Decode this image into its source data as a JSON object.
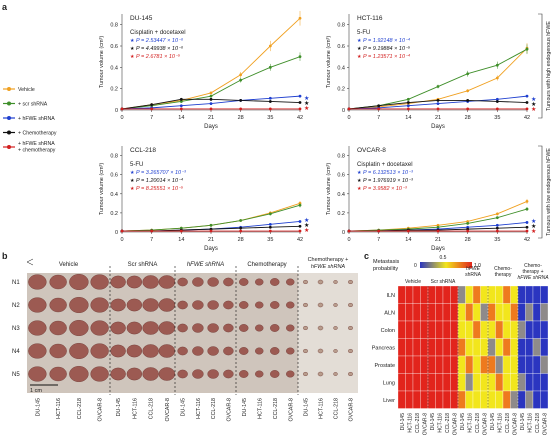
{
  "panel_letters": {
    "a": "a",
    "b": "b",
    "c": "c"
  },
  "legend": [
    {
      "label": "Vehicle",
      "color": "#f0a020"
    },
    {
      "label": "+ scr shRNA",
      "color": "#3f8f2a"
    },
    {
      "label": "+ hFWE shRNA",
      "color": "#1f3fcf"
    },
    {
      "label": "+ Chemotherapy",
      "color": "#111111"
    },
    {
      "label": "+ hFWE shRNA + chemotherapy",
      "color": "#d21f1f"
    }
  ],
  "side_labels": {
    "high": "Tumours with high endogenous hFWE",
    "low": "Tumours with low endogenous hFWE"
  },
  "chart_data": [
    {
      "type": "line",
      "title": "DU-145",
      "xlabel": "Days",
      "ylabel": "Tumour volume (cm³)",
      "x": [
        0,
        7,
        14,
        21,
        28,
        35,
        42
      ],
      "ylim": [
        0,
        0.9
      ],
      "yticks": [
        0,
        0.2,
        0.4,
        0.6,
        0.8
      ],
      "annotation": [
        "Cisplatin + docetaxel",
        "P = 2.53447 × 10⁻⁶",
        "P = 4.49938 × 10⁻⁶",
        "P = 2.6781 × 10⁻⁵"
      ],
      "series": [
        {
          "name": "Vehicle",
          "values": [
            0.01,
            0.05,
            0.09,
            0.16,
            0.33,
            0.6,
            0.86
          ]
        },
        {
          "name": "+ scr shRNA",
          "values": [
            0.01,
            0.04,
            0.08,
            0.13,
            0.28,
            0.4,
            0.5
          ]
        },
        {
          "name": "+ hFWE shRNA",
          "values": [
            0.01,
            0.02,
            0.04,
            0.06,
            0.09,
            0.11,
            0.13
          ]
        },
        {
          "name": "+ Chemotherapy",
          "values": [
            0.01,
            0.05,
            0.1,
            0.1,
            0.09,
            0.08,
            0.07
          ]
        },
        {
          "name": "+ hFWE shRNA + chemotherapy",
          "values": [
            0.01,
            0.01,
            0.01,
            0.01,
            0.01,
            0.01,
            0.01
          ]
        }
      ]
    },
    {
      "type": "line",
      "title": "HCT-116",
      "xlabel": "Days",
      "ylabel": "Tumour volume (cm³)",
      "x": [
        0,
        7,
        14,
        21,
        28,
        35,
        42
      ],
      "ylim": [
        0,
        0.9
      ],
      "yticks": [
        0,
        0.2,
        0.4,
        0.6,
        0.8
      ],
      "annotation": [
        "5-FU",
        "P = 1.92148 × 10⁻⁴",
        "P = 9.19884 × 10⁻⁵",
        "P = 1.23571 × 10⁻⁴"
      ],
      "series": [
        {
          "name": "Vehicle",
          "values": [
            0.01,
            0.03,
            0.06,
            0.1,
            0.18,
            0.3,
            0.58
          ]
        },
        {
          "name": "+ scr shRNA",
          "values": [
            0.01,
            0.04,
            0.1,
            0.22,
            0.34,
            0.42,
            0.57
          ]
        },
        {
          "name": "+ hFWE shRNA",
          "values": [
            0.01,
            0.02,
            0.04,
            0.06,
            0.08,
            0.1,
            0.13
          ]
        },
        {
          "name": "+ Chemotherapy",
          "values": [
            0.01,
            0.04,
            0.07,
            0.09,
            0.09,
            0.08,
            0.07
          ]
        },
        {
          "name": "+ hFWE shRNA + chemotherapy",
          "values": [
            0.01,
            0.01,
            0.01,
            0.01,
            0.01,
            0.01,
            0.01
          ]
        }
      ]
    },
    {
      "type": "line",
      "title": "CCL-218",
      "xlabel": "Days",
      "ylabel": "Tumour volume (cm³)",
      "x": [
        0,
        7,
        14,
        21,
        28,
        35,
        42
      ],
      "ylim": [
        0,
        0.9
      ],
      "yticks": [
        0,
        0.2,
        0.4,
        0.6,
        0.8
      ],
      "annotation": [
        "5-FU",
        "P = 3.265707 × 10⁻³",
        "P = 1.20014 × 10⁻⁴",
        "P = 8.25551 × 10⁻⁵"
      ],
      "series": [
        {
          "name": "Vehicle",
          "values": [
            0.01,
            0.02,
            0.04,
            0.07,
            0.12,
            0.2,
            0.3
          ]
        },
        {
          "name": "+ scr shRNA",
          "values": [
            0.01,
            0.02,
            0.04,
            0.07,
            0.12,
            0.19,
            0.28
          ]
        },
        {
          "name": "+ hFWE shRNA",
          "values": [
            0.01,
            0.01,
            0.02,
            0.03,
            0.05,
            0.08,
            0.11
          ]
        },
        {
          "name": "+ Chemotherapy",
          "values": [
            0.01,
            0.01,
            0.02,
            0.03,
            0.04,
            0.05,
            0.06
          ]
        },
        {
          "name": "+ hFWE shRNA + chemotherapy",
          "values": [
            0.01,
            0.01,
            0.01,
            0.01,
            0.01,
            0.01,
            0.01
          ]
        }
      ]
    },
    {
      "type": "line",
      "title": "OVCAR-8",
      "xlabel": "Days",
      "ylabel": "Tumour volume (cm³)",
      "x": [
        0,
        7,
        14,
        21,
        28,
        35,
        42
      ],
      "ylim": [
        0,
        0.9
      ],
      "yticks": [
        0,
        0.2,
        0.4,
        0.6,
        0.8
      ],
      "annotation": [
        "Cisplatin + docetaxel",
        "P = 6.132513 × 10⁻³",
        "P = 1.976919 × 10⁻³",
        "P = 3.9582 × 10⁻³"
      ],
      "series": [
        {
          "name": "Vehicle",
          "values": [
            0.01,
            0.02,
            0.04,
            0.07,
            0.11,
            0.19,
            0.32
          ]
        },
        {
          "name": "+ scr shRNA",
          "values": [
            0.01,
            0.02,
            0.03,
            0.05,
            0.09,
            0.15,
            0.24
          ]
        },
        {
          "name": "+ hFWE shRNA",
          "values": [
            0.01,
            0.01,
            0.02,
            0.03,
            0.05,
            0.07,
            0.1
          ]
        },
        {
          "name": "+ Chemotherapy",
          "values": [
            0.01,
            0.01,
            0.02,
            0.02,
            0.03,
            0.04,
            0.05
          ]
        },
        {
          "name": "+ hFWE shRNA + chemotherapy",
          "values": [
            0.01,
            0.01,
            0.01,
            0.01,
            0.01,
            0.01,
            0.01
          ]
        }
      ]
    }
  ],
  "panel_b": {
    "groups": [
      "Vehicle",
      "Scr shRNA",
      "hFWE shRNA",
      "Chemotherapy",
      "Chemotherapy + hFWE shRNA"
    ],
    "rows": [
      "N1",
      "N2",
      "N3",
      "N4",
      "N5"
    ],
    "cell_lines": [
      "DU-145",
      "HCT-116",
      "CCL-218",
      "OVCAR-8"
    ],
    "scale_bar": "1 cm"
  },
  "panel_c": {
    "type": "heatmap",
    "title": "Metastasis probability",
    "colorbar_ticks": [
      "0",
      "0.5",
      "1.0"
    ],
    "groups": [
      "Vehicle",
      "Scr shRNA",
      "hFWE shRNA",
      "Chemo-therapy",
      "Chemo-therapy + hFWE shRNA"
    ],
    "rows": [
      "ILN",
      "ALN",
      "Colon",
      "Pancreas",
      "Prostate",
      "Lung",
      "Liver"
    ],
    "columns": [
      "DU-145",
      "HCT-116",
      "CCL-218",
      "OVCAR-8",
      "DU-145",
      "HCT-116",
      "CCL-218",
      "OVCAR-8",
      "DU-145",
      "HCT-116",
      "CCL-218",
      "OVCAR-8",
      "DU-145",
      "HCT-116",
      "CCL-218",
      "OVCAR-8",
      "DU-145",
      "HCT-116",
      "CCL-218",
      "OVCAR-8"
    ],
    "values": [
      [
        1.0,
        0.95,
        1.0,
        0.9,
        1.0,
        0.95,
        1.0,
        0.9,
        0.3,
        0.5,
        0.6,
        0.45,
        0.55,
        0.5,
        0.65,
        0.55,
        0.0,
        0.0,
        0.0,
        0.0
      ],
      [
        1.0,
        1.0,
        0.9,
        1.0,
        1.0,
        1.0,
        0.95,
        1.0,
        0.5,
        0.6,
        0.45,
        0.3,
        0.6,
        0.5,
        0.55,
        0.6,
        0.0,
        0.3,
        0.0,
        0.3
      ],
      [
        1.0,
        0.9,
        1.0,
        1.0,
        1.0,
        0.9,
        1.0,
        0.95,
        0.55,
        0.45,
        0.6,
        0.5,
        0.5,
        0.6,
        0.5,
        0.5,
        0.3,
        0.0,
        0.0,
        0.0
      ],
      [
        0.9,
        1.0,
        1.0,
        0.95,
        1.0,
        1.0,
        0.9,
        1.0,
        0.6,
        0.5,
        0.45,
        0.55,
        0.3,
        0.55,
        0.6,
        0.5,
        0.0,
        0.0,
        0.3,
        0.0
      ],
      [
        1.0,
        1.0,
        1.0,
        0.9,
        0.95,
        1.0,
        1.0,
        1.0,
        0.45,
        0.6,
        0.5,
        0.6,
        0.6,
        0.3,
        0.5,
        0.55,
        0.0,
        0.0,
        0.0,
        0.3
      ],
      [
        0.95,
        1.0,
        0.9,
        1.0,
        1.0,
        0.9,
        1.0,
        0.95,
        0.5,
        0.3,
        0.55,
        0.5,
        0.55,
        0.6,
        0.45,
        0.5,
        0.3,
        0.0,
        0.0,
        0.0
      ],
      [
        1.0,
        0.9,
        1.0,
        1.0,
        1.0,
        1.0,
        0.95,
        1.0,
        0.6,
        0.55,
        0.5,
        0.45,
        0.5,
        0.55,
        0.6,
        0.3,
        0.0,
        0.3,
        0.0,
        0.0
      ]
    ]
  }
}
